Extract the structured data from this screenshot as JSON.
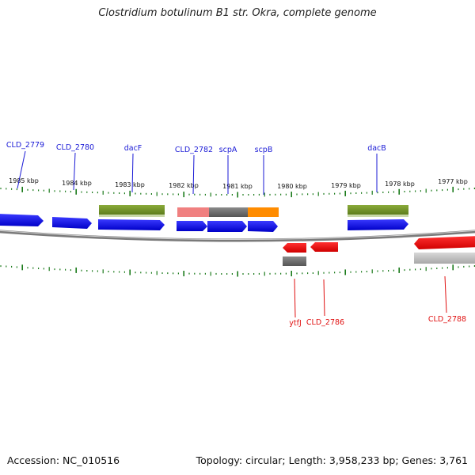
{
  "title": "Clostridium botulinum B1 str. Okra, complete genome",
  "footer": {
    "accession": "Accession: NC_010516",
    "topology": "Topology: circular; Length: 3,958,233 bp; Genes: 3,761"
  },
  "colors": {
    "forward_gene_label": "#1a1ad6",
    "reverse_gene_label": "#e01010",
    "cds_forward": "#0a0ae8",
    "cds_reverse": "#f20a0a",
    "rna_green": "#6b8e23",
    "rna_pink": "#f08080",
    "rna_grey": "#707070",
    "rna_orange": "#ff8c00",
    "tick": "#1a7a1a",
    "backbone": "#888888"
  },
  "ruler": [
    {
      "label": "1985 kbp"
    },
    {
      "label": "1984 kbp"
    },
    {
      "label": "1983 kbp"
    },
    {
      "label": "1982 kbp"
    },
    {
      "label": "1981 kbp"
    },
    {
      "label": "1980 kbp"
    },
    {
      "label": "1979 kbp"
    },
    {
      "label": "1978 kbp"
    },
    {
      "label": "1977 kbp"
    }
  ],
  "forward_labels": [
    {
      "name": "CLD_2779"
    },
    {
      "name": "CLD_2780"
    },
    {
      "name": "dacF"
    },
    {
      "name": "CLD_2782"
    },
    {
      "name": "scpA"
    },
    {
      "name": "scpB"
    },
    {
      "name": "dacB"
    }
  ],
  "reverse_labels": [
    {
      "name": "ytfJ"
    },
    {
      "name": "CLD_2786"
    },
    {
      "name": "CLD_2788"
    }
  ]
}
